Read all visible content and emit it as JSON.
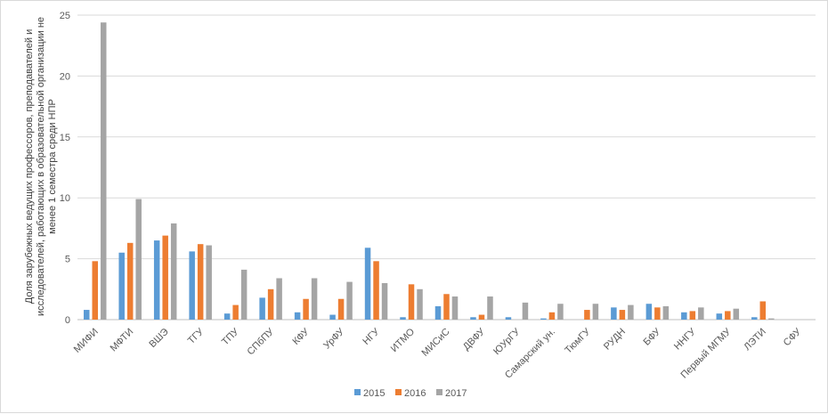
{
  "chart_data": {
    "type": "bar",
    "title": "",
    "xlabel": "",
    "ylabel_lines": [
      "Доля зарубежных ведущих профессоров, преподавателей и",
      "исследователей, работающих в образовательной организации не",
      "менее 1 семестра среди НПР"
    ],
    "ylim": [
      0,
      25
    ],
    "yticks": [
      0,
      5,
      10,
      15,
      20,
      25
    ],
    "grid": true,
    "legend_position": "bottom",
    "categories": [
      "МИФИ",
      "МФТИ",
      "ВШЭ",
      "ТГУ",
      "ТПУ",
      "СПбПУ",
      "КФУ",
      "УрФУ",
      "НГУ",
      "ИТМО",
      "МИСиС",
      "ДВФУ",
      "ЮУрГУ",
      "Самарский ун.",
      "ТюмГУ",
      "РУДН",
      "БФУ",
      "ННГУ",
      "Первый МГМУ",
      "ЛЭТИ",
      "СФУ"
    ],
    "series": [
      {
        "name": "2015",
        "color": "#5b9bd5",
        "values": [
          0.8,
          5.5,
          6.5,
          5.6,
          0.5,
          1.8,
          0.6,
          0.4,
          5.9,
          0.2,
          1.1,
          0.2,
          0.2,
          0.1,
          0.0,
          1.0,
          1.3,
          0.6,
          0.5,
          0.2,
          0.0
        ]
      },
      {
        "name": "2016",
        "color": "#ed7d31",
        "values": [
          4.8,
          6.3,
          6.9,
          6.2,
          1.2,
          2.5,
          1.7,
          1.7,
          4.8,
          2.9,
          2.1,
          0.4,
          0.0,
          0.6,
          0.8,
          0.8,
          1.0,
          0.7,
          0.7,
          1.5,
          0.0
        ]
      },
      {
        "name": "2017",
        "color": "#a5a5a5",
        "values": [
          24.4,
          9.9,
          7.9,
          6.1,
          4.1,
          3.4,
          3.4,
          3.1,
          3.0,
          2.5,
          1.9,
          1.9,
          1.4,
          1.3,
          1.3,
          1.2,
          1.1,
          1.0,
          0.9,
          0.1,
          0.0
        ]
      }
    ]
  }
}
